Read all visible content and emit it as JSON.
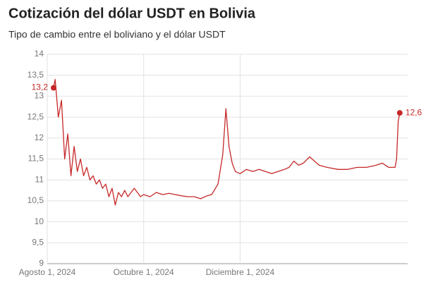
{
  "chart_data": {
    "type": "line",
    "title": "Cotización del dólar USDT en Bolivia",
    "subtitle": "Tipo de cambio entre el boliviano y el dólar USDT",
    "x": [
      "2024-08-05",
      "2024-08-06",
      "2024-08-08",
      "2024-08-10",
      "2024-08-12",
      "2024-08-14",
      "2024-08-16",
      "2024-08-18",
      "2024-08-20",
      "2024-08-22",
      "2024-08-24",
      "2024-08-26",
      "2024-08-28",
      "2024-08-30",
      "2024-09-01",
      "2024-09-03",
      "2024-09-05",
      "2024-09-07",
      "2024-09-09",
      "2024-09-11",
      "2024-09-13",
      "2024-09-15",
      "2024-09-17",
      "2024-09-19",
      "2024-09-21",
      "2024-09-23",
      "2024-09-25",
      "2024-09-27",
      "2024-09-29",
      "2024-10-01",
      "2024-10-05",
      "2024-10-09",
      "2024-10-13",
      "2024-10-17",
      "2024-10-21",
      "2024-10-25",
      "2024-10-29",
      "2024-11-02",
      "2024-11-06",
      "2024-11-10",
      "2024-11-13",
      "2024-11-17",
      "2024-11-20",
      "2024-11-22",
      "2024-11-24",
      "2024-11-26",
      "2024-11-28",
      "2024-12-01",
      "2024-12-05",
      "2024-12-09",
      "2024-12-13",
      "2024-12-17",
      "2024-12-21",
      "2024-12-25",
      "2024-12-29",
      "2025-01-01",
      "2025-01-04",
      "2025-01-07",
      "2025-01-10",
      "2025-01-14",
      "2025-01-17",
      "2025-01-20",
      "2025-01-25",
      "2025-02-01",
      "2025-02-07",
      "2025-02-13",
      "2025-02-19",
      "2025-02-25",
      "2025-03-01",
      "2025-03-05",
      "2025-03-09",
      "2025-03-10",
      "2025-03-11",
      "2025-03-12"
    ],
    "series": [
      {
        "name": "USDT",
        "color": "#c62828",
        "values": [
          13.2,
          13.4,
          12.5,
          12.9,
          11.5,
          12.1,
          11.1,
          11.8,
          11.2,
          11.5,
          11.1,
          11.3,
          11.0,
          11.1,
          10.9,
          11.0,
          10.8,
          10.9,
          10.6,
          10.8,
          10.4,
          10.7,
          10.6,
          10.75,
          10.6,
          10.7,
          10.8,
          10.7,
          10.6,
          10.65,
          10.6,
          10.7,
          10.65,
          10.68,
          10.65,
          10.62,
          10.6,
          10.6,
          10.55,
          10.62,
          10.65,
          10.9,
          11.6,
          12.7,
          11.8,
          11.4,
          11.2,
          11.15,
          11.25,
          11.2,
          11.25,
          11.2,
          11.15,
          11.2,
          11.25,
          11.3,
          11.45,
          11.35,
          11.4,
          11.55,
          11.45,
          11.35,
          11.3,
          11.25,
          11.25,
          11.3,
          11.3,
          11.35,
          11.4,
          11.3,
          11.3,
          11.5,
          12.4,
          12.6
        ]
      }
    ],
    "annotations": [
      {
        "x": "2024-08-05",
        "value": 13.2,
        "label": "13,2"
      },
      {
        "x": "2025-03-12",
        "value": 12.6,
        "label": "12,6"
      }
    ],
    "xlim": [
      "2024-08-01",
      "2025-03-17"
    ],
    "xticks": [
      {
        "value": "2024-08-01",
        "label": "Agosto 1, 2024"
      },
      {
        "value": "2024-10-01",
        "label": "Octubre 1, 2024"
      },
      {
        "value": "2024-12-01",
        "label": "Diciembre 1, 2024"
      }
    ],
    "ylim": [
      9,
      14
    ],
    "yticks": [
      9,
      {
        "value": 9.5,
        "label": "9,5"
      },
      10,
      {
        "value": 10.5,
        "label": "10,5"
      },
      11,
      {
        "value": 11.5,
        "label": "11,5"
      },
      12,
      {
        "value": 12.5,
        "label": "12,5"
      },
      13,
      {
        "value": 13.5,
        "label": "13,5"
      },
      14
    ],
    "grid": true
  }
}
